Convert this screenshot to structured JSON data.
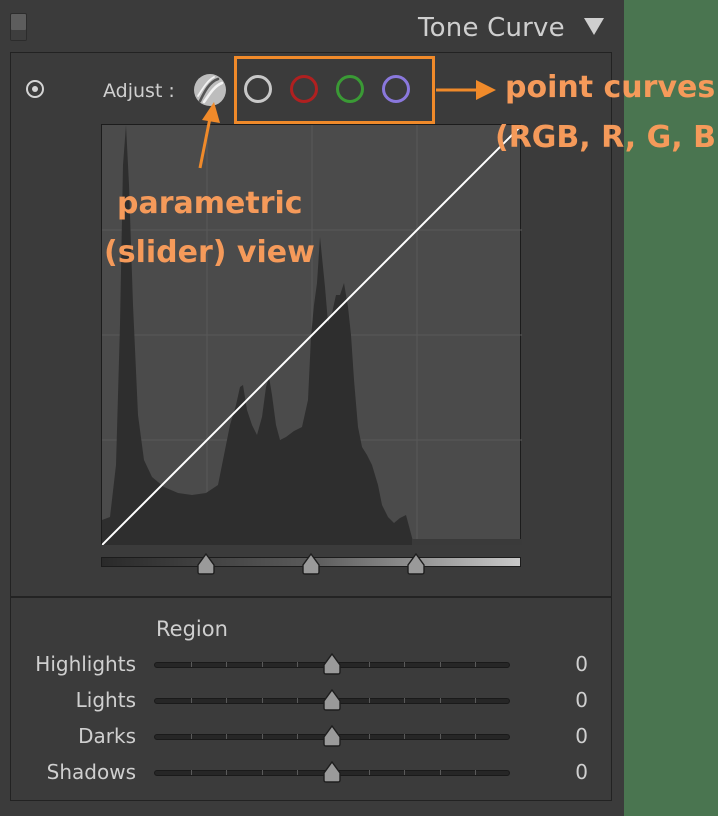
{
  "panel": {
    "title": "Tone Curve",
    "adjust_label": "Adjust :"
  },
  "icons": {
    "target_adjust": "target-adjust-icon",
    "parametric": "parametric-curve-icon",
    "collapse": "triangle-down-icon"
  },
  "point_curve_channels": [
    {
      "name": "RGB",
      "color": "#c8c8c8"
    },
    {
      "name": "R",
      "color": "#b02020"
    },
    {
      "name": "G",
      "color": "#3a9a35"
    },
    {
      "name": "B",
      "color": "#8a78dd"
    }
  ],
  "split_points": [
    25,
    50,
    75
  ],
  "region": {
    "title": "Region",
    "sliders": [
      {
        "label": "Highlights",
        "value": "0"
      },
      {
        "label": "Lights",
        "value": "0"
      },
      {
        "label": "Darks",
        "value": "0"
      },
      {
        "label": "Shadows",
        "value": "0"
      }
    ]
  },
  "annotations": {
    "point_line1": "point curves",
    "point_line2": "(RGB, R, G, B)",
    "param_line1": "parametric",
    "param_line2": "(slider) view",
    "accent_color": "#f08a2a"
  }
}
